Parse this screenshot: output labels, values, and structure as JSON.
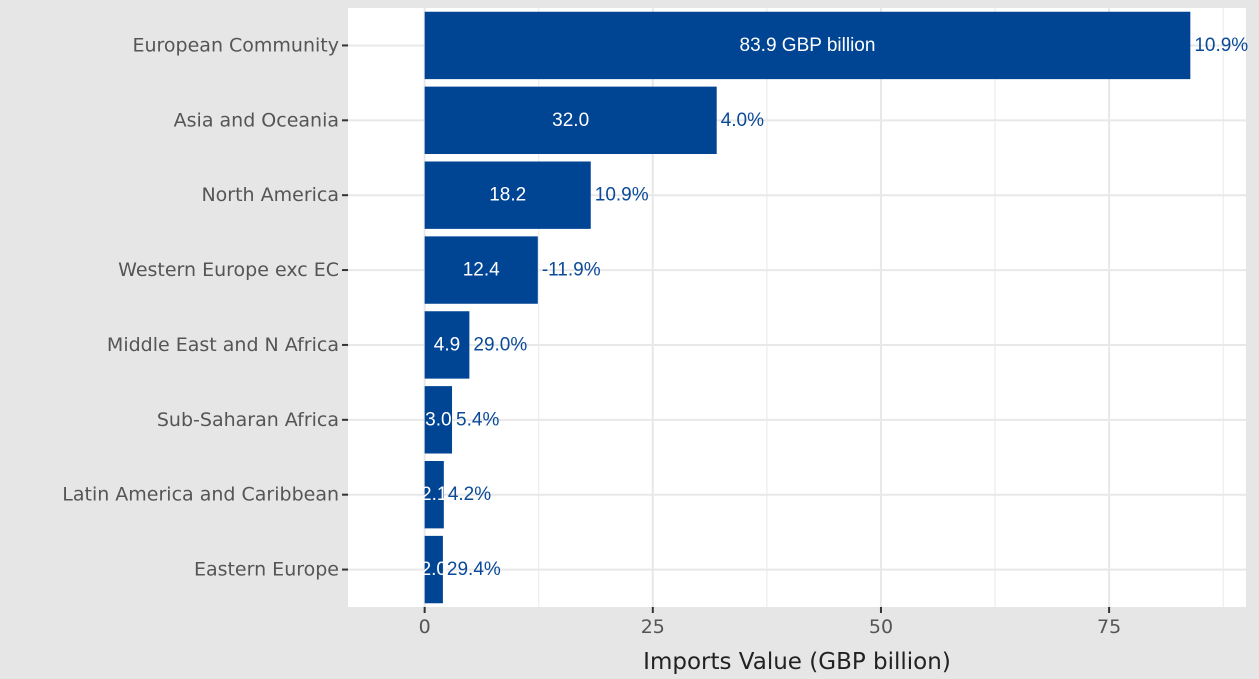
{
  "chart_data": {
    "type": "bar",
    "orientation": "horizontal",
    "categories": [
      "European Community",
      "Asia and Oceania",
      "North America",
      "Western Europe exc EC",
      "Middle East and N Africa",
      "Sub-Saharan Africa",
      "Latin America and Caribbean",
      "Eastern Europe"
    ],
    "values": [
      83.9,
      32.0,
      18.2,
      12.4,
      4.9,
      3.0,
      2.1,
      2.0
    ],
    "value_labels": [
      "83.9 GBP billion",
      "32.0",
      "18.2",
      "12.4",
      "4.9",
      "3.0",
      "2.1",
      "2.0"
    ],
    "change_labels": [
      "10.9%",
      "4.0%",
      "10.9%",
      "-11.9%",
      "29.0%",
      "5.4%",
      "4.2%",
      "29.4%"
    ],
    "xlabel": "Imports Value (GBP billion)",
    "ylabel": "",
    "xlim": [
      -8.4,
      90
    ],
    "xticks": [
      0,
      25,
      50,
      75
    ],
    "xtick_labels": [
      "0",
      "25",
      "50",
      "75"
    ],
    "grid": true,
    "colors": {
      "bar": "#004494",
      "panel": "#ffffff",
      "plot_background": "#e6e6e6",
      "grid": "#e8e8e8",
      "change_label": "#0a4a99",
      "value_label": "#ffffff",
      "axis_text": "#555555",
      "title_text": "#222222"
    }
  }
}
